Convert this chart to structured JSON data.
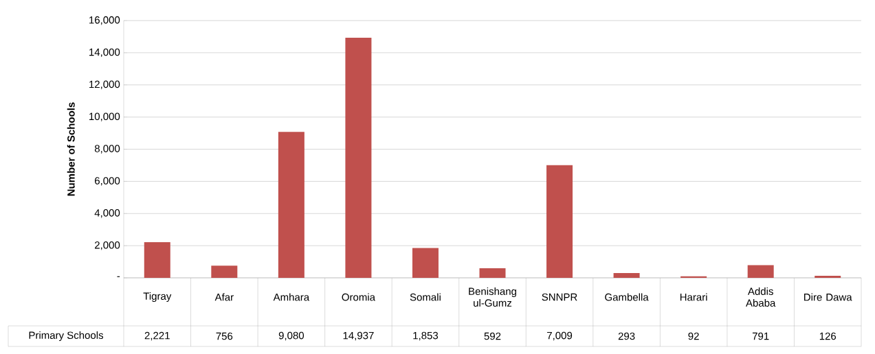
{
  "chart_data": {
    "type": "bar",
    "ylabel": "Number of Schools",
    "categories": [
      "Tigray",
      "Afar",
      "Amhara",
      "Oromia",
      "Somali",
      "Benishang ul-Gumz",
      "SNNPR",
      "Gambella",
      "Harari",
      "Addis Ababa",
      "Dire Dawa"
    ],
    "series": [
      {
        "name": "Primary Schools",
        "color": "#c0504d",
        "values": [
          2221,
          756,
          9080,
          14937,
          1853,
          592,
          7009,
          293,
          92,
          791,
          126
        ],
        "value_labels": [
          "2,221",
          "756",
          "9,080",
          "14,937",
          "1,853",
          "592",
          "7,009",
          "293",
          "92",
          "791",
          "126"
        ]
      }
    ],
    "ylim": [
      0,
      16000
    ],
    "yticks": [
      {
        "value": 0,
        "label": "-"
      },
      {
        "value": 2000,
        "label": "2,000"
      },
      {
        "value": 4000,
        "label": "4,000"
      },
      {
        "value": 6000,
        "label": "6,000"
      },
      {
        "value": 8000,
        "label": "8,000"
      },
      {
        "value": 10000,
        "label": "10,000"
      },
      {
        "value": 12000,
        "label": "12,000"
      },
      {
        "value": 14000,
        "label": "14,000"
      },
      {
        "value": 16000,
        "label": "16,000"
      }
    ],
    "grid": "y"
  }
}
